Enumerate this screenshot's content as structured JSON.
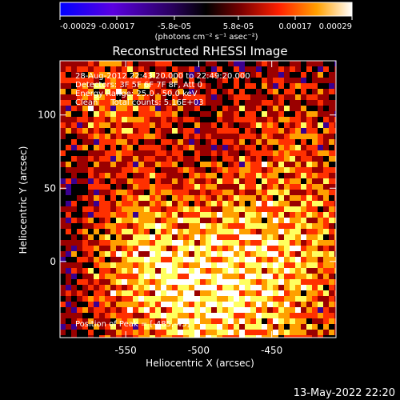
{
  "colorbar": {
    "ticks": [
      "-0.00029",
      "-0.00017",
      "-5.8e-05",
      "5.8e-05",
      "0.00017",
      "0.00029"
    ],
    "unit_label": "(photons cm⁻² s⁻¹ asec⁻²)"
  },
  "title": "Reconstructed RHESSI Image",
  "info": {
    "line1": "28-Aug-2012 22:43:20.000 to 22:49:20.000",
    "line2": "Detectors: 3F 5F 6F 7F 8F, Att 0",
    "line3": "Energy Range: 25.0 - 50.0 keV",
    "line4": "Clean     Total counts: 5.16E+03",
    "peak": "Position of Peak = [-485,-45]"
  },
  "footer_date": "13-May-2022 22:20",
  "chart_data": {
    "type": "heatmap",
    "title": "Reconstructed RHESSI Image",
    "xlabel": "Heliocentric X (arcsec)",
    "ylabel": "Heliocentric Y (arcsec)",
    "xlim": [
      -595,
      -406
    ],
    "ylim": [
      -52,
      137
    ],
    "x_ticks": [
      -550,
      -500,
      -450
    ],
    "y_ticks": [
      0,
      50,
      100
    ],
    "x_tick_labels": [
      "-550",
      "-500",
      "-450"
    ],
    "y_tick_labels": [
      "0",
      "50",
      "100"
    ],
    "colorscale_range": [
      -0.00029,
      0.00029
    ],
    "peak_position": [
      -485,
      -45
    ],
    "colormap": [
      "#0000ff",
      "#6a00e0",
      "#3a0090",
      "#000000",
      "#9a0000",
      "#ff3000",
      "#ffa000",
      "#ffff60",
      "#ffffff"
    ]
  }
}
